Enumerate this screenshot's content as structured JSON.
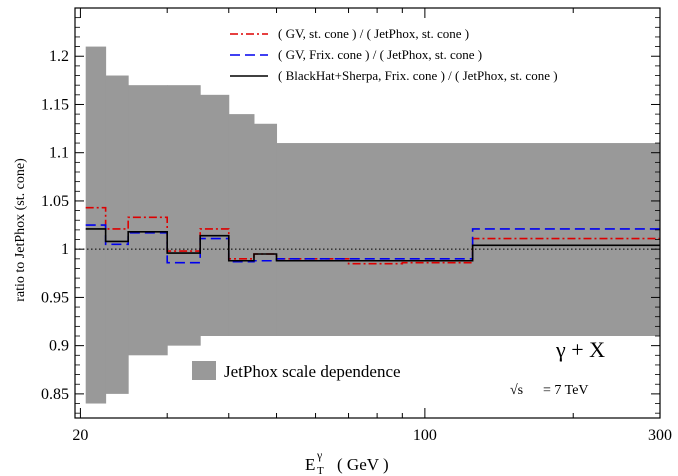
{
  "chart_data": {
    "type": "line",
    "x_scale": "log",
    "xlim": [
      19.5,
      300
    ],
    "ylim": [
      0.825,
      1.25
    ],
    "x_ticks": [
      20,
      100,
      300
    ],
    "x_tick_labels": [
      "20",
      "100",
      "300"
    ],
    "y_ticks": [
      0.85,
      0.9,
      0.95,
      1.0,
      1.05,
      1.1,
      1.15,
      1.2
    ],
    "y_tick_labels": [
      "0.85",
      "0.9",
      "0.95",
      "1",
      "1.05",
      "1.1",
      "1.15",
      "1.2"
    ],
    "xlabel_main": "E",
    "xlabel_sup": "γ",
    "xlabel_sub": "T",
    "xlabel_unit": "( GeV )",
    "ylabel": "ratio to JetPhox (st. cone)",
    "reference_line": 1.0,
    "band": {
      "name": "JetPhox scale dependence",
      "color": "#999999",
      "bins": [
        {
          "x0": 20.5,
          "x1": 22.5,
          "low": 0.84,
          "high": 1.21
        },
        {
          "x0": 22.5,
          "x1": 25,
          "low": 0.85,
          "high": 1.18
        },
        {
          "x0": 25,
          "x1": 30,
          "low": 0.89,
          "high": 1.17
        },
        {
          "x0": 30,
          "x1": 35,
          "low": 0.9,
          "high": 1.17
        },
        {
          "x0": 35,
          "x1": 40,
          "low": 0.91,
          "high": 1.16
        },
        {
          "x0": 40,
          "x1": 45,
          "low": 0.91,
          "high": 1.14
        },
        {
          "x0": 45,
          "x1": 50,
          "low": 0.91,
          "high": 1.13
        },
        {
          "x0": 50,
          "x1": 300,
          "low": 0.91,
          "high": 1.11
        }
      ]
    },
    "bin_edges": [
      20.5,
      22.5,
      25,
      30,
      35,
      40,
      45,
      50,
      70,
      90,
      125,
      300
    ],
    "series": [
      {
        "name": "( GV, st. cone ) / ( JetPhox, st. cone )",
        "color": "#dd0000",
        "dash": "8 3 2 3",
        "values": [
          1.043,
          1.021,
          1.033,
          0.998,
          1.021,
          0.99,
          0.995,
          0.99,
          0.985,
          0.986,
          1.011
        ]
      },
      {
        "name": "( GV, Frix. cone ) / ( JetPhox, st. cone )",
        "color": "#0000ee",
        "dash": "10 5",
        "values": [
          1.025,
          1.005,
          1.017,
          0.986,
          1.011,
          0.987,
          0.988,
          0.99,
          0.99,
          0.99,
          1.021
        ]
      },
      {
        "name": "( BlackHat+Sherpa, Frix. cone ) / ( JetPhox, st. cone )",
        "color": "#000000",
        "dash": "",
        "values": [
          1.021,
          1.008,
          1.018,
          0.996,
          1.014,
          0.988,
          0.995,
          0.988,
          0.988,
          0.988,
          1.004
        ]
      }
    ],
    "annotations": {
      "process": "γ + X",
      "sqrt_symbol": "√s",
      "energy_text": "= 7 TeV"
    }
  }
}
